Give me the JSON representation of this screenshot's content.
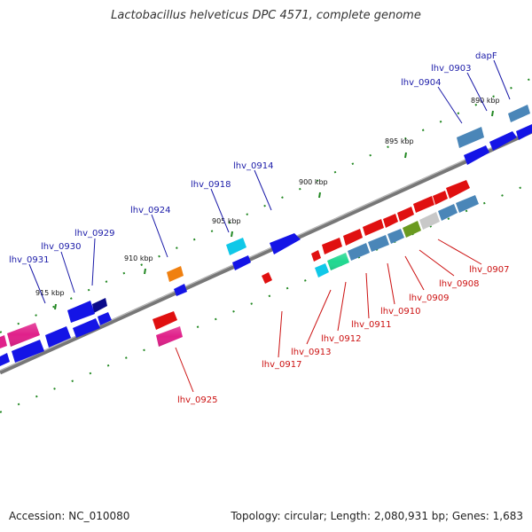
{
  "title": "Lactobacillus helveticus DPC 4571, complete genome",
  "footer": {
    "accession": "Accession: NC_010080",
    "summary": "Topology: circular; Length: 2,080,931 bp; Genes: 1,683"
  },
  "ticks": [
    "890 kbp",
    "895 kbp",
    "900 kbp",
    "905 kbp",
    "910 kbp",
    "915 kbp"
  ],
  "genes_top": [
    "dapF",
    "lhv_0903",
    "lhv_0904",
    "lhv_0914",
    "lhv_0918",
    "lhv_0924",
    "lhv_0929",
    "lhv_0930",
    "lhv_0931"
  ],
  "genes_bottom": [
    "lhv_0907",
    "lhv_0908",
    "lhv_0909",
    "lhv_0910",
    "lhv_0911",
    "lhv_0912",
    "lhv_0913",
    "lhv_0917",
    "lhv_0925"
  ],
  "colors": {
    "blue": "#1414e6",
    "steel": "#4a86b8",
    "red": "#e01010",
    "magenta": "#e0208a",
    "cyan": "#10c8e8",
    "orange": "#f08010",
    "green": "#20d890",
    "olive": "#6a9a20",
    "grey": "#c8c8c8",
    "navy": "#0a0a8a",
    "backbone": "#777777",
    "tick": "#228822"
  }
}
